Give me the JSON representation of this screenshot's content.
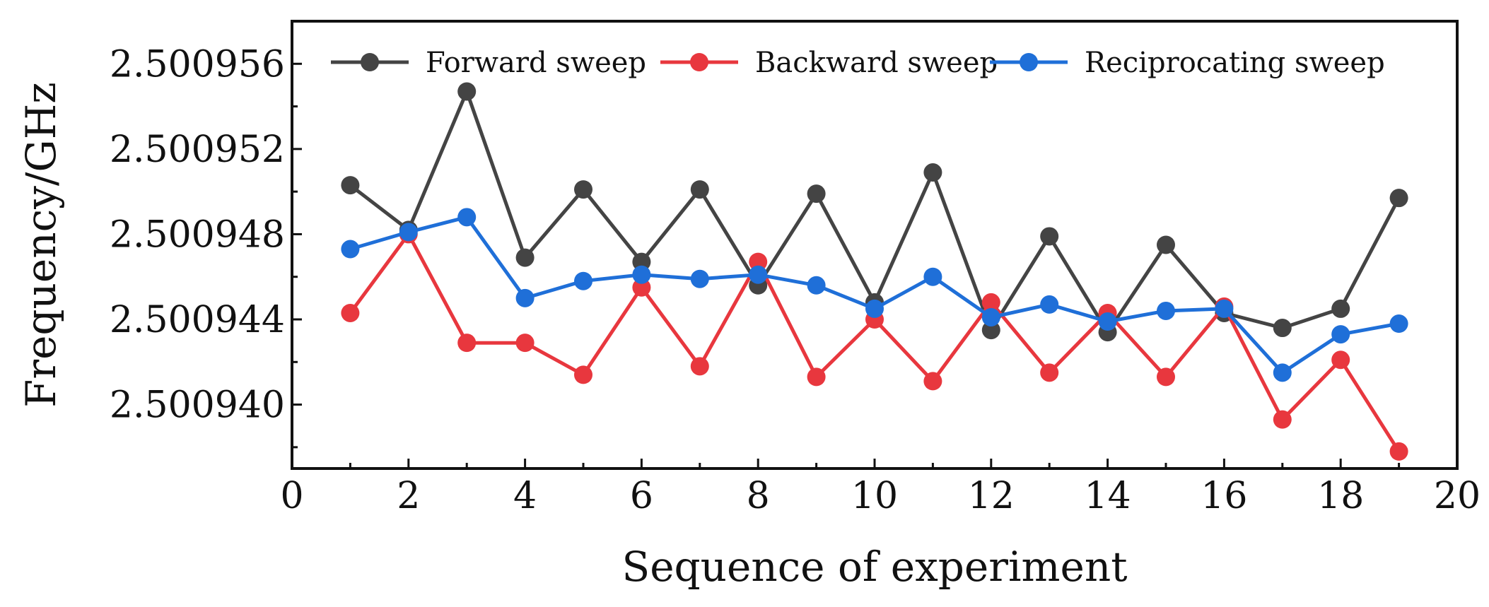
{
  "chart_data": {
    "type": "line",
    "title": "",
    "xlabel": "Sequence of experiment",
    "ylabel": "Frequency/GHz",
    "xlim": [
      0,
      20
    ],
    "ylim": [
      2.500937,
      2.500958
    ],
    "xticks": [
      0,
      2,
      4,
      6,
      8,
      10,
      12,
      14,
      16,
      18,
      20
    ],
    "xtick_labels": [
      "0",
      "2",
      "4",
      "6",
      "8",
      "10",
      "12",
      "14",
      "16",
      "18",
      "20"
    ],
    "yticks": [
      2.50094,
      2.500944,
      2.500948,
      2.500952,
      2.500956
    ],
    "ytick_labels": [
      "2.500940",
      "2.500944",
      "2.500948",
      "2.500952",
      "2.500956"
    ],
    "grid": false,
    "legend_position": "top",
    "x": [
      1,
      2,
      3,
      4,
      5,
      6,
      7,
      8,
      9,
      10,
      11,
      12,
      13,
      14,
      15,
      16,
      17,
      18,
      19
    ],
    "series": [
      {
        "name": "Forward sweep",
        "color": "#444444",
        "values": [
          2.5009503,
          2.5009482,
          2.5009547,
          2.5009469,
          2.5009501,
          2.5009467,
          2.5009501,
          2.5009456,
          2.5009499,
          2.5009448,
          2.5009509,
          2.5009435,
          2.5009479,
          2.5009434,
          2.5009475,
          2.5009443,
          2.5009436,
          2.5009445,
          2.5009497
        ]
      },
      {
        "name": "Backward sweep",
        "color": "#e8373e",
        "values": [
          2.5009443,
          2.500948,
          2.5009429,
          2.5009429,
          2.5009414,
          2.5009455,
          2.5009418,
          2.5009467,
          2.5009413,
          2.500944,
          2.5009411,
          2.5009448,
          2.5009415,
          2.5009443,
          2.5009413,
          2.5009446,
          2.5009393,
          2.5009421,
          2.5009378
        ]
      },
      {
        "name": "Reciprocating sweep",
        "color": "#1f6fd8",
        "values": [
          2.5009473,
          2.5009481,
          2.5009488,
          2.500945,
          2.5009458,
          2.5009461,
          2.5009459,
          2.5009461,
          2.5009456,
          2.5009445,
          2.500946,
          2.5009441,
          2.5009447,
          2.5009439,
          2.5009444,
          2.5009445,
          2.5009415,
          2.5009433,
          2.5009438
        ]
      }
    ]
  }
}
